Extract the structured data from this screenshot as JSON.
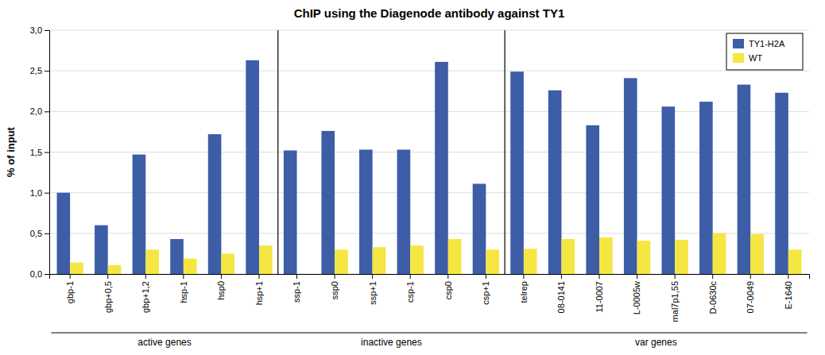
{
  "chart_data": {
    "type": "bar",
    "title": "ChIP using the Diagenode antibody against TY1",
    "ylabel": "% of input",
    "categories": [
      "gbp-1",
      "gbp+0,5",
      "gbp+1,2",
      "hsp-1",
      "hsp0",
      "hsp+1",
      "ssp-1",
      "ssp0",
      "ssp+1",
      "csp-1",
      "csp0",
      "csp+1",
      "telrep",
      "08-0141",
      "11-0007",
      "L-0005w",
      "mal7p1,55",
      "D-0630c",
      "07-0049",
      "E-1640"
    ],
    "series": [
      {
        "name": "TY1-H2A",
        "color": "#3D5DA7",
        "values": [
          1.0,
          0.6,
          1.47,
          0.43,
          1.72,
          2.63,
          1.52,
          1.76,
          1.53,
          1.53,
          2.61,
          1.11,
          2.49,
          2.26,
          1.83,
          2.41,
          2.06,
          2.12,
          2.33,
          2.23
        ]
      },
      {
        "name": "WT",
        "color": "#F5E642",
        "values": [
          0.14,
          0.11,
          0.3,
          0.19,
          0.25,
          0.35,
          0.0,
          0.3,
          0.33,
          0.35,
          0.43,
          0.3,
          0.31,
          0.43,
          0.45,
          0.41,
          0.42,
          0.5,
          0.49,
          0.3
        ]
      }
    ],
    "groups": [
      {
        "label": "active genes",
        "first": "gbp-1",
        "last": "hsp+1"
      },
      {
        "label": "inactive genes",
        "first": "ssp-1",
        "last": "csp+1"
      },
      {
        "label": "var genes",
        "first": "telrep",
        "last": "E-1640"
      }
    ],
    "ylim": [
      0,
      3.0
    ],
    "yticks": [
      {
        "value": 0.0,
        "label": "0,0"
      },
      {
        "value": 0.5,
        "label": "0,5"
      },
      {
        "value": 1.0,
        "label": "1,0"
      },
      {
        "value": 1.5,
        "label": "1,5"
      },
      {
        "value": 2.0,
        "label": "2,0"
      },
      {
        "value": 2.5,
        "label": "2,5"
      },
      {
        "value": 3.0,
        "label": "3,0"
      }
    ],
    "grid": true,
    "legend": "upper right"
  }
}
